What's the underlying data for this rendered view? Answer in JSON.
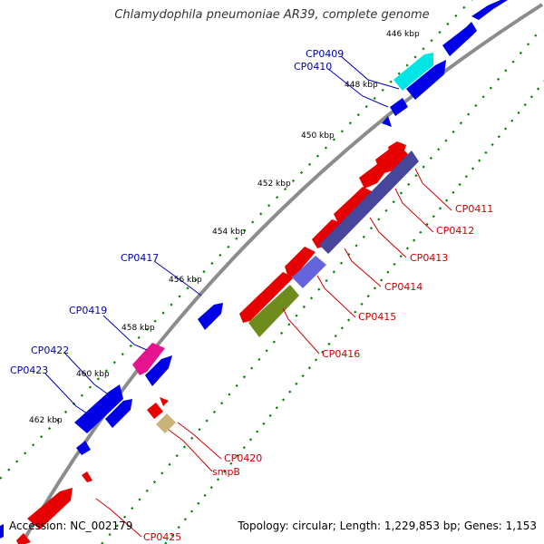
{
  "title": "Chlamydophila pneumoniae AR39, complete genome",
  "footer": {
    "accession": "Accession: NC_002179",
    "summary": "Topology: circular; Length: 1,229,853 bp; Genes: 1,153"
  },
  "colors": {
    "forward": "#e60000",
    "reverse": "#0000e6",
    "cyan": "#00e6e6",
    "magenta": "#e6148c",
    "purple": "#46469a",
    "violet": "#6464dc",
    "olive": "#6e8c1e",
    "khaki": "#c8b478",
    "backbone": "#8c8c8c",
    "tick": "#008000",
    "label_forward": "#cc0000",
    "label_reverse": "#0000b4"
  },
  "scale_labels": [
    "446 kbp",
    "448 kbp",
    "450 kbp",
    "452 kbp",
    "454 kbp",
    "456 kbp",
    "458 kbp",
    "460 kbp",
    "462 kbp"
  ],
  "gene_labels": {
    "reverse": [
      "CP0409",
      "CP0410",
      "CP0417",
      "CP0419",
      "CP0422",
      "CP0423"
    ],
    "forward": [
      "CP0411",
      "CP0412",
      "CP0413",
      "CP0414",
      "CP0415",
      "CP0416",
      "CP0420",
      "smpB",
      "CP0425"
    ]
  }
}
